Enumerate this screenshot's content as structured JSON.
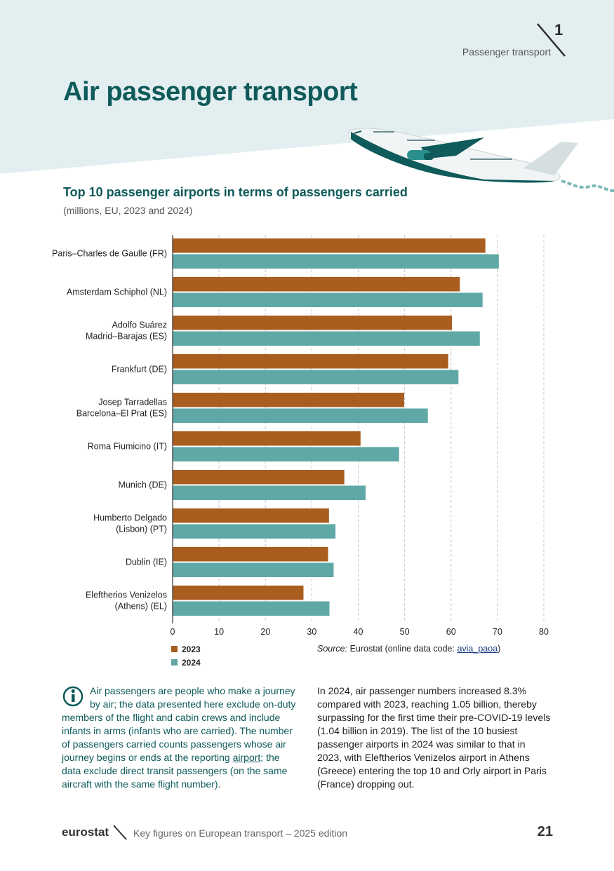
{
  "header": {
    "section_number": "1",
    "section_label": "Passenger transport",
    "page_title": "Air passenger transport"
  },
  "chart_data": {
    "type": "bar",
    "orientation": "horizontal",
    "title": "Top 10 passenger airports in terms of passengers carried",
    "subtitle": "(millions, EU, 2023 and 2024)",
    "categories": [
      "Paris–Charles de Gaulle (FR)",
      "Amsterdam Schiphol (NL)",
      "Adolfo Suárez\nMadrid–Barajas (ES)",
      "Frankfurt  (DE)",
      "Josep Tarradellas\nBarcelona–El Prat (ES)",
      "Roma Fiumicino (IT)",
      "Munich (DE)",
      "Humberto Delgado\n(Lisbon) (PT)",
      "Dublin (IE)",
      "Eleftherios Venizelos\n(Athens) (EL)"
    ],
    "series": [
      {
        "name": "2023",
        "color": "#a95e1f",
        "values": [
          67.4,
          61.9,
          60.2,
          59.4,
          49.9,
          40.5,
          37.0,
          33.7,
          33.5,
          28.2
        ]
      },
      {
        "name": "2024",
        "color": "#5fa8a5",
        "values": [
          70.3,
          66.8,
          66.2,
          61.6,
          55.0,
          48.8,
          41.6,
          35.1,
          34.7,
          33.8
        ]
      }
    ],
    "xlim": [
      0,
      80
    ],
    "xticks": [
      0,
      10,
      20,
      30,
      40,
      50,
      60,
      70,
      80
    ],
    "grid": true,
    "legend_position": "bottom-left"
  },
  "source": {
    "prefix": "Source:",
    "text": " Eurostat (online data code: ",
    "code": "avia_paoa",
    "suffix": ")"
  },
  "info": {
    "text_before_link": "Air passengers are people who make a journey by air; the data presented here exclude on-duty members of the flight and cabin crews and include infants in arms (infants who are carried). The number of passengers carried counts passengers whose air journey begins or ends at the reporting ",
    "link_text": "airport",
    "text_after_link": "; the data exclude direct transit passengers (on the same aircraft with the same flight number)."
  },
  "body_text": "In 2024, air passenger numbers increased 8.3% compared with 2023, reaching 1.05 billion, thereby surpassing for the first time their pre-COVID-19 levels (1.04 billion in 2019). The list of the 10 busiest passenger airports in 2024 was similar to that in 2023, with Eleftherios Venizelos airport in Athens (Greece) entering the top 10 and Orly airport in Paris (France) dropping out.",
  "footer": {
    "brand": "eurostat",
    "publication": "Key figures on European transport – 2025 edition",
    "page_number": "21"
  },
  "colors": {
    "title": "#0f5a5a",
    "hero_background": "#e3eef0",
    "series_2023": "#a95e1f",
    "series_2024": "#5fa8a5"
  }
}
